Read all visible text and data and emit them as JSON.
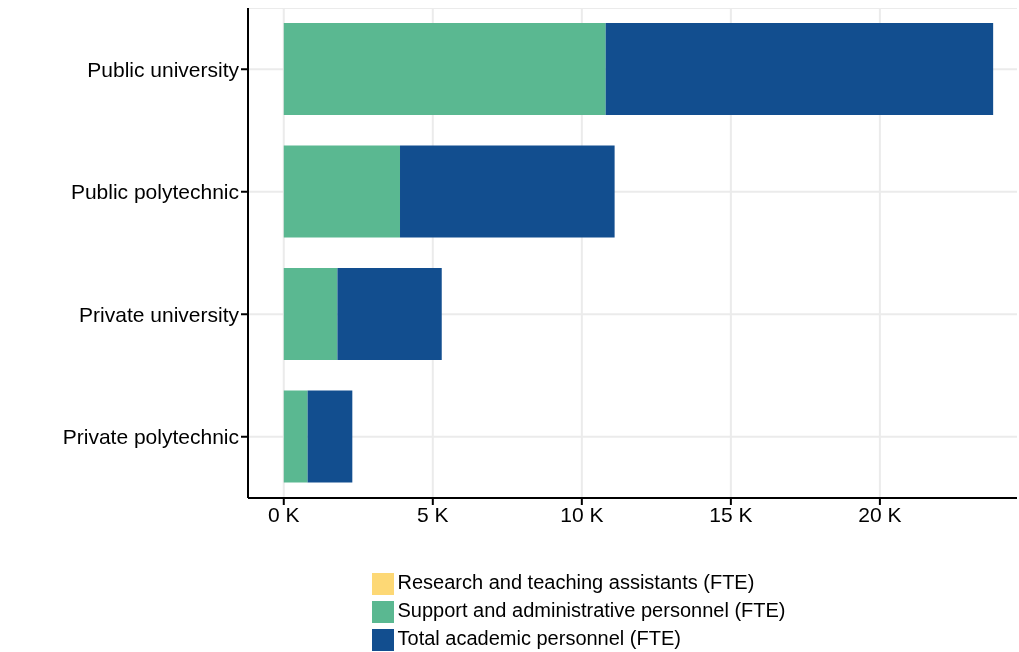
{
  "chart_data": {
    "type": "bar",
    "orientation": "horizontal",
    "stacked": true,
    "categories": [
      "Public university",
      "Public polytechnic",
      "Private university",
      "Private polytechnic"
    ],
    "series": [
      {
        "name": "Research and teaching assistants (FTE)",
        "color": "#fdd875",
        "values": [
          0,
          0,
          0,
          0
        ]
      },
      {
        "name": "Support and administrative personnel (FTE)",
        "color": "#5ab891",
        "values": [
          10.8,
          3.9,
          1.8,
          0.8
        ]
      },
      {
        "name": "Total academic personnel (FTE)",
        "color": "#124e8f",
        "values": [
          13.0,
          7.2,
          3.5,
          1.5
        ]
      }
    ],
    "xlim": [
      -1.2,
      24.6
    ],
    "xticks": [
      {
        "value": 0,
        "label": "0 K"
      },
      {
        "value": 5,
        "label": "5 K"
      },
      {
        "value": 10,
        "label": "10 K"
      },
      {
        "value": 15,
        "label": "15 K"
      },
      {
        "value": 20,
        "label": "20 K"
      }
    ],
    "grid": true,
    "legend": "bottom"
  }
}
